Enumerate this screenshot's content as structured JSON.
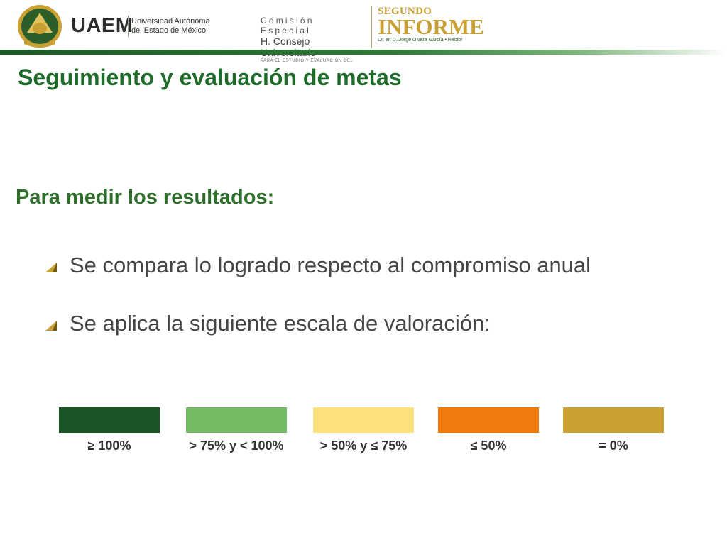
{
  "header": {
    "uaem_acronym": "UAEM",
    "uaem_name_line1": "Universidad Autónoma",
    "uaem_name_line2": "del Estado de México",
    "commission_line1": "Comisión Especial",
    "commission_line2": "H. Consejo Universitario",
    "commission_line3": "PARA EL ESTUDIO Y EVALUACIÓN DEL",
    "report_line1": "SEGUNDO",
    "report_line2": "INFORME",
    "report_line3": "Dr. en D. Jorge Olvera García • Rector",
    "icons": [
      "uaem-seal-icon"
    ],
    "colors": {
      "green": "#1c5a25",
      "gold": "#c9a034"
    }
  },
  "slide": {
    "title": "Seguimiento y evaluación de metas",
    "subtitle": "Para medir los resultados:",
    "bullets": [
      "Se compara lo logrado respecto al compromiso anual",
      "Se aplica la siguiente escala de valoración:"
    ],
    "bullet_icon": "triangle-bullet-icon"
  },
  "scale": [
    {
      "label": "≥ 100%",
      "color": "#1a5527"
    },
    {
      "label": "> 75% y < 100%",
      "color": "#74b963"
    },
    {
      "label": "> 50% y ≤ 75%",
      "color": "#fde07a"
    },
    {
      "label": "≤ 50%",
      "color": "#ee7b0b"
    },
    {
      "label": "= 0%",
      "color": "#c9a132"
    }
  ]
}
